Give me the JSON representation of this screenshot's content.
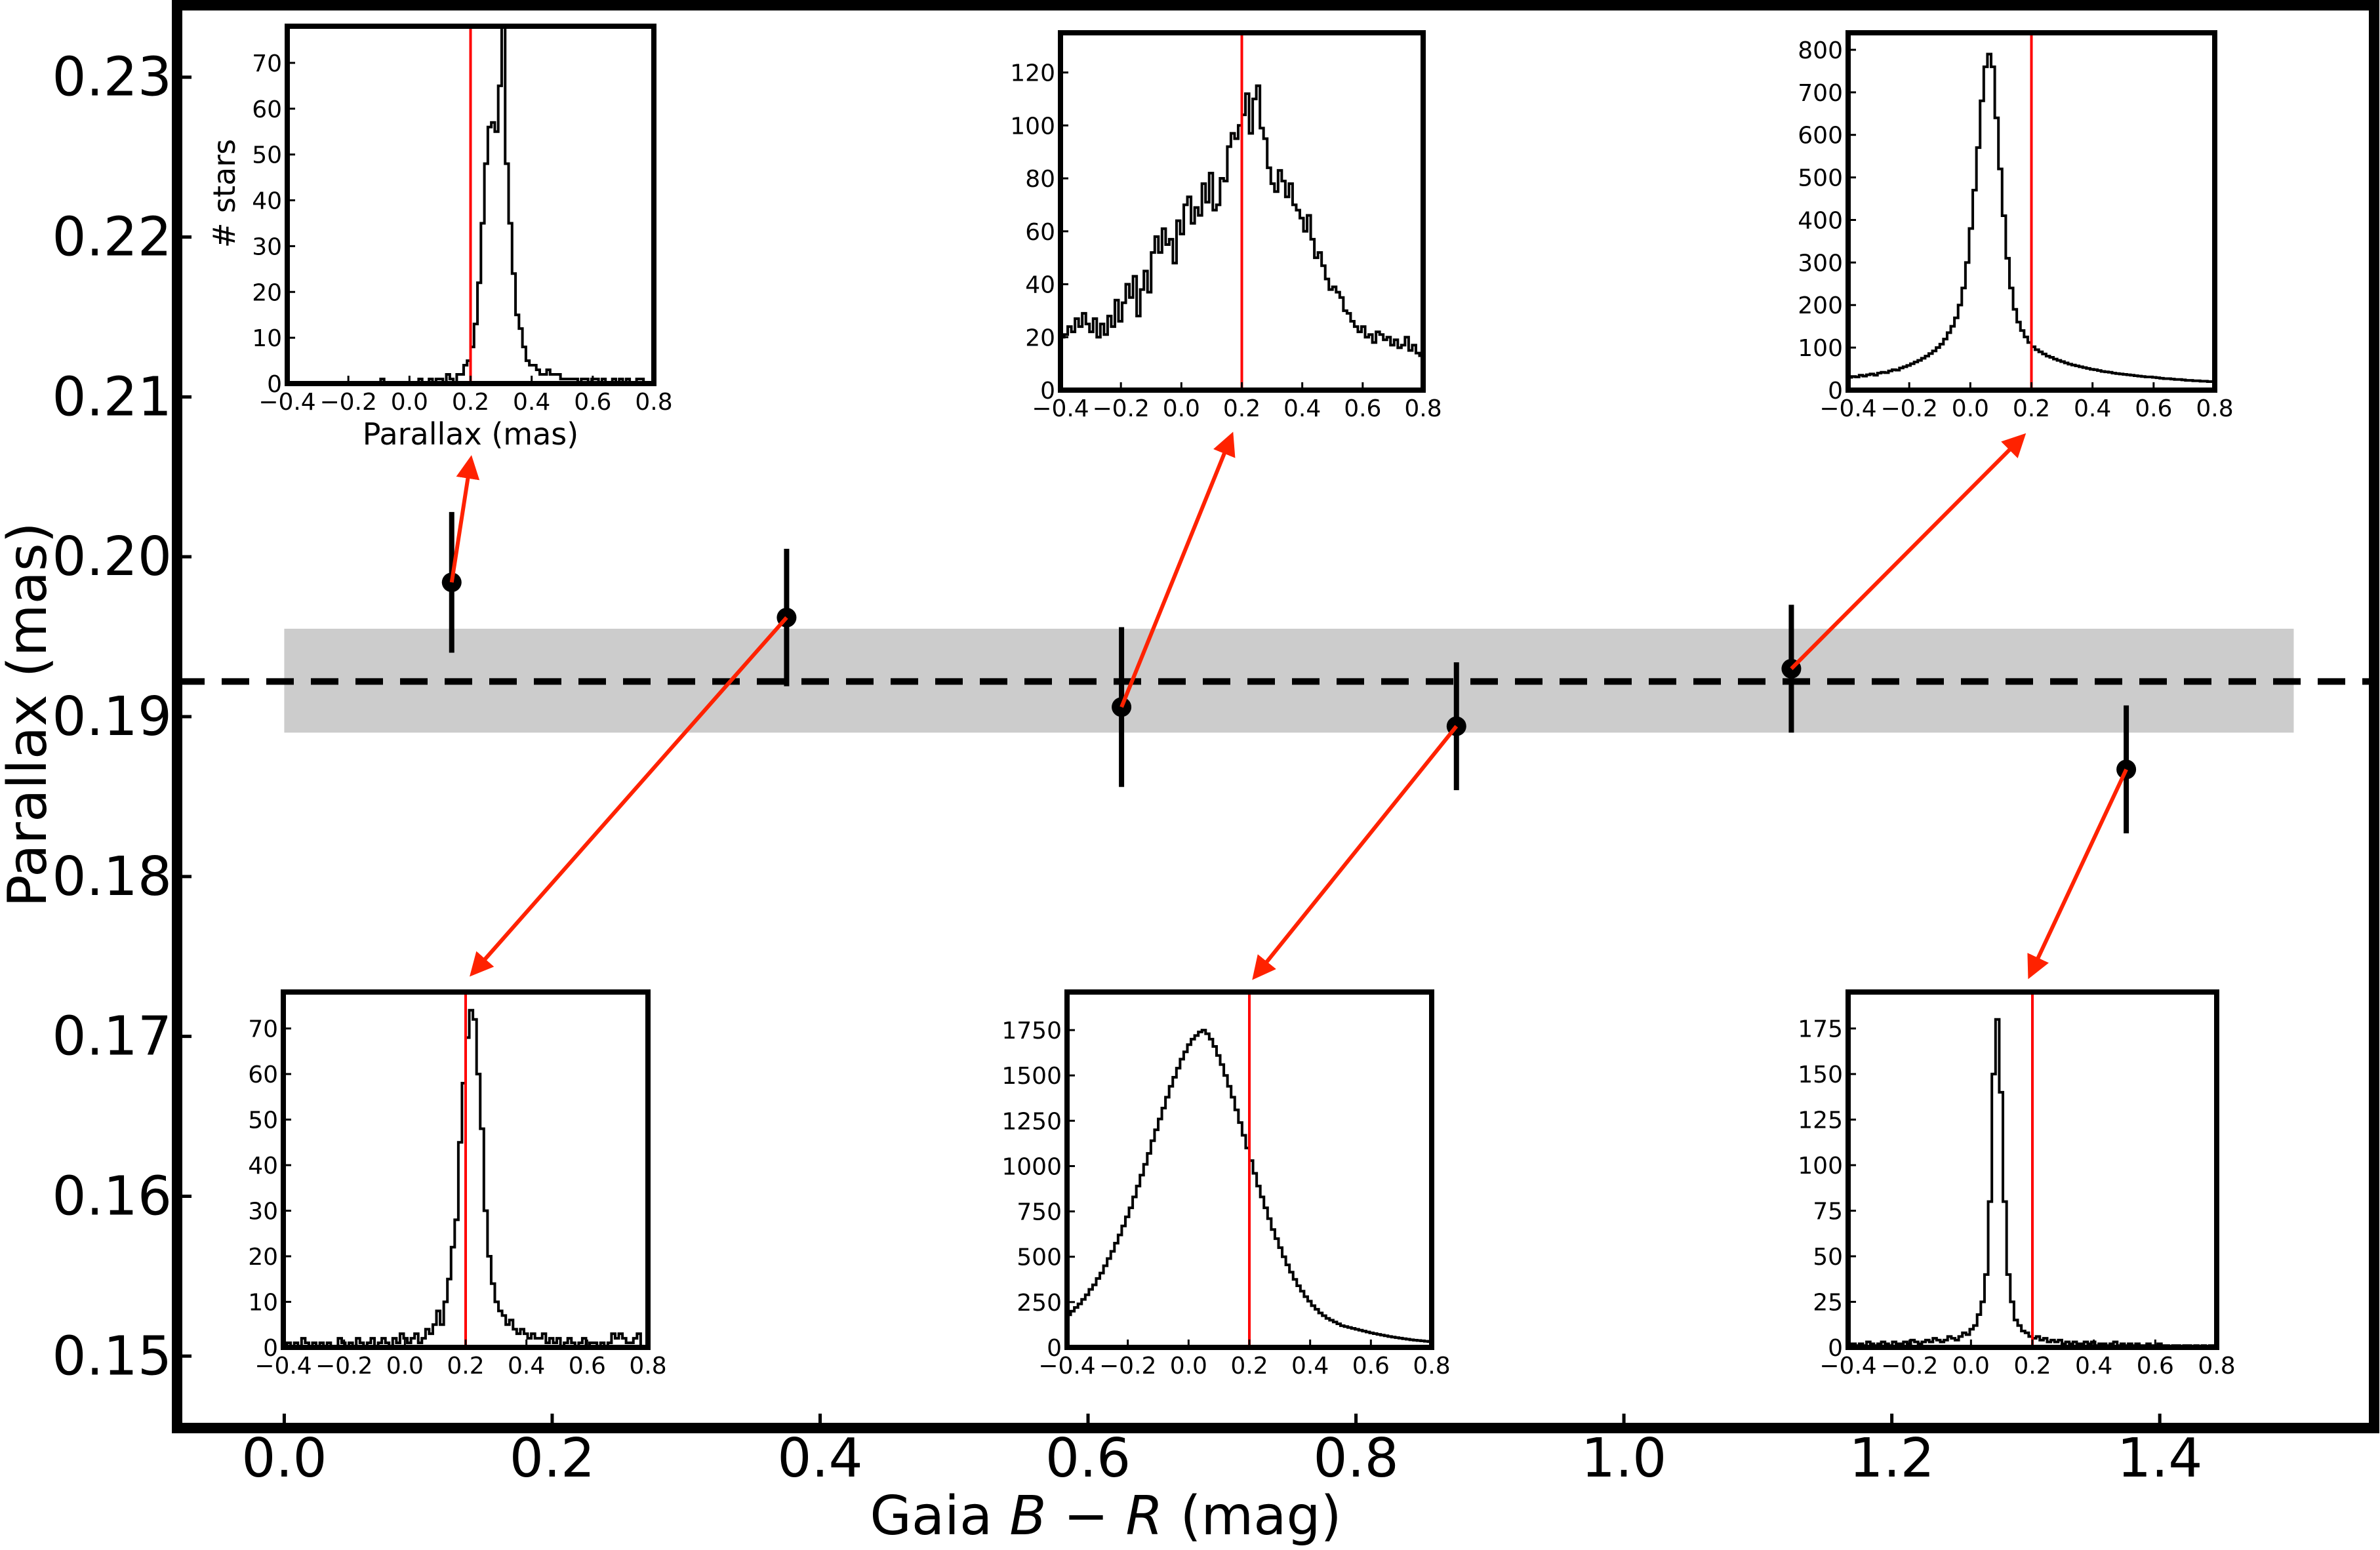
{
  "chart_data": {
    "type": "scatter",
    "xlabel_parts": [
      "Gaia ",
      "B",
      " − ",
      "R",
      " (mag)"
    ],
    "ylabel": "Parallax (mas)",
    "xlim": [
      -0.08,
      1.56
    ],
    "ylim": [
      0.1455,
      0.2345
    ],
    "xticks": [
      0.0,
      0.2,
      0.4,
      0.6,
      0.8,
      1.0,
      1.2,
      1.4
    ],
    "xtick_labels": [
      "0.0",
      "0.2",
      "0.4",
      "0.6",
      "0.8",
      "1.0",
      "1.2",
      "1.4"
    ],
    "yticks": [
      0.15,
      0.16,
      0.17,
      0.18,
      0.19,
      0.2,
      0.21,
      0.22,
      0.23
    ],
    "ytick_labels": [
      "0.15",
      "0.16",
      "0.17",
      "0.18",
      "0.19",
      "0.20",
      "0.21",
      "0.22",
      "0.23"
    ],
    "reference_line": {
      "y": 0.1922,
      "style": "dashed",
      "color": "#000000"
    },
    "shaded_band": {
      "x": [
        0.0,
        1.5
      ],
      "y": [
        0.189,
        0.1955
      ],
      "color": "#cccccc"
    },
    "points": [
      {
        "x": 0.125,
        "y": 0.1984,
        "err": 0.0044
      },
      {
        "x": 0.375,
        "y": 0.1962,
        "err": 0.0043
      },
      {
        "x": 0.625,
        "y": 0.1906,
        "err": 0.005
      },
      {
        "x": 0.875,
        "y": 0.1894,
        "err": 0.004
      },
      {
        "x": 1.125,
        "y": 0.193,
        "err": 0.004
      },
      {
        "x": 1.375,
        "y": 0.1867,
        "err": 0.004
      }
    ],
    "arrow_color": "#ff2200",
    "insets": [
      {
        "name": "inset-bin-1",
        "xlim": [
          -0.4,
          0.8
        ],
        "ylim": [
          0,
          78
        ],
        "xticks": [
          -0.4,
          -0.2,
          0.0,
          0.2,
          0.4,
          0.6,
          0.8
        ],
        "xtick_labels": [
          "−0.4",
          "−0.2",
          "0.0",
          "0.2",
          "0.4",
          "0.6",
          "0.8"
        ],
        "yticks": [
          0,
          10,
          20,
          30,
          40,
          50,
          60,
          70
        ],
        "ytick_labels": [
          "0",
          "10",
          "20",
          "30",
          "40",
          "50",
          "60",
          "70"
        ],
        "xlabel": "Parallax (mas)",
        "ylabel": "# stars",
        "vline": 0.2,
        "counts": [
          0,
          0,
          0,
          0,
          0,
          0,
          0,
          0,
          0,
          0,
          0,
          0,
          0,
          0,
          0,
          0,
          0,
          0,
          0,
          0,
          0,
          0,
          0,
          0,
          0,
          0,
          0,
          1,
          0,
          0,
          0,
          0,
          0,
          0,
          0,
          0,
          0,
          0,
          1,
          0,
          0,
          1,
          0,
          1,
          1,
          0,
          2,
          1,
          0,
          2,
          2,
          4,
          5,
          8,
          13,
          22,
          35,
          48,
          56,
          57,
          55,
          65,
          78,
          48,
          35,
          24,
          15,
          12,
          8,
          5,
          4,
          4,
          3,
          2,
          2,
          3,
          2,
          2,
          2,
          1,
          1,
          1,
          1,
          1,
          0,
          1,
          1,
          0,
          1,
          1,
          0,
          1,
          0,
          0,
          1,
          0,
          1,
          0,
          1,
          0,
          0,
          1,
          1,
          0,
          0,
          0
        ]
      },
      {
        "name": "inset-bin-2",
        "xlim": [
          -0.4,
          0.8
        ],
        "ylim": [
          0,
          135
        ],
        "xticks": [
          -0.4,
          -0.2,
          0.0,
          0.2,
          0.4,
          0.6,
          0.8
        ],
        "xtick_labels": [
          "−0.4",
          "−0.2",
          "0.0",
          "0.2",
          "0.4",
          "0.6",
          "0.8"
        ],
        "yticks": [
          0,
          20,
          40,
          60,
          80,
          100,
          120
        ],
        "ytick_labels": [
          "0",
          "20",
          "40",
          "60",
          "80",
          "100",
          "120"
        ],
        "xlabel": "",
        "ylabel": "",
        "vline": 0.2,
        "counts": [
          20,
          21,
          24,
          22,
          27,
          24,
          29,
          25,
          22,
          27,
          20,
          25,
          21,
          28,
          24,
          34,
          26,
          33,
          40,
          35,
          43,
          28,
          38,
          45,
          37,
          52,
          58,
          52,
          61,
          55,
          57,
          48,
          64,
          59,
          70,
          73,
          63,
          69,
          66,
          78,
          71,
          82,
          68,
          70,
          80,
          79,
          92,
          97,
          95,
          100,
          104,
          112,
          97,
          110,
          115,
          99,
          95,
          84,
          78,
          75,
          83,
          79,
          73,
          78,
          70,
          68,
          65,
          60,
          66,
          57,
          50,
          52,
          47,
          42,
          38,
          39,
          37,
          35,
          30,
          29,
          26,
          24,
          22,
          24,
          20,
          21,
          18,
          22,
          21,
          19,
          20,
          17,
          19,
          16,
          17,
          20,
          15,
          17,
          14,
          13
        ]
      },
      {
        "name": "inset-bin-3",
        "xlim": [
          -0.4,
          0.8
        ],
        "ylim": [
          0,
          840
        ],
        "xticks": [
          -0.4,
          -0.2,
          0.0,
          0.2,
          0.4,
          0.6,
          0.8
        ],
        "xtick_labels": [
          "−0.4",
          "−0.2",
          "0.0",
          "0.2",
          "0.4",
          "0.6",
          "0.8"
        ],
        "yticks": [
          0,
          100,
          200,
          300,
          400,
          500,
          600,
          700,
          800
        ],
        "ytick_labels": [
          "0",
          "100",
          "200",
          "300",
          "400",
          "500",
          "600",
          "700",
          "800"
        ],
        "xlabel": "",
        "ylabel": "",
        "vline": 0.2,
        "counts": [
          30,
          32,
          31,
          35,
          33,
          36,
          38,
          35,
          40,
          42,
          41,
          45,
          48,
          47,
          52,
          55,
          58,
          62,
          66,
          70,
          75,
          80,
          86,
          92,
          100,
          108,
          120,
          135,
          150,
          170,
          200,
          240,
          300,
          380,
          470,
          570,
          680,
          760,
          790,
          760,
          640,
          520,
          410,
          310,
          240,
          190,
          160,
          140,
          125,
          112,
          102,
          95,
          90,
          85,
          80,
          77,
          73,
          70,
          67,
          64,
          61,
          59,
          57,
          55,
          53,
          51,
          49,
          48,
          46,
          44,
          43,
          42,
          40,
          39,
          38,
          37,
          36,
          35,
          34,
          33,
          32,
          31,
          31,
          30,
          29,
          28,
          27,
          27,
          26,
          25,
          25,
          24,
          23,
          23,
          22,
          22,
          21,
          21,
          20,
          20
        ]
      },
      {
        "name": "inset-bin-4",
        "xlim": [
          -0.4,
          0.8
        ],
        "ylim": [
          0,
          78
        ],
        "xticks": [
          -0.4,
          -0.2,
          0.0,
          0.2,
          0.4,
          0.6,
          0.8
        ],
        "xtick_labels": [
          "−0.4",
          "−0.2",
          "0.0",
          "0.2",
          "0.4",
          "0.6",
          "0.8"
        ],
        "yticks": [
          0,
          10,
          20,
          30,
          40,
          50,
          60,
          70
        ],
        "ytick_labels": [
          "0",
          "10",
          "20",
          "30",
          "40",
          "50",
          "60",
          "70"
        ],
        "xlabel": "",
        "ylabel": "",
        "vline": 0.2,
        "counts": [
          0,
          1,
          0,
          1,
          0,
          2,
          1,
          0,
          1,
          0,
          1,
          0,
          1,
          0,
          0,
          2,
          1,
          0,
          1,
          0,
          2,
          1,
          0,
          1,
          2,
          0,
          1,
          2,
          1,
          0,
          2,
          1,
          3,
          2,
          1,
          2,
          3,
          1,
          2,
          4,
          3,
          5,
          8,
          5,
          10,
          15,
          22,
          28,
          45,
          58,
          68,
          74,
          72,
          60,
          48,
          30,
          20,
          14,
          10,
          8,
          7,
          5,
          6,
          4,
          3,
          4,
          3,
          2,
          3,
          2,
          2,
          3,
          1,
          2,
          1,
          2,
          0,
          1,
          2,
          1,
          0,
          1,
          2,
          0,
          1,
          1,
          0,
          1,
          0,
          1,
          3,
          2,
          3,
          2,
          1,
          1,
          2,
          3,
          0,
          0
        ]
      },
      {
        "name": "inset-bin-5",
        "xlim": [
          -0.4,
          0.8
        ],
        "ylim": [
          0,
          1960
        ],
        "xticks": [
          -0.4,
          -0.2,
          0.0,
          0.2,
          0.4,
          0.6,
          0.8
        ],
        "xtick_labels": [
          "−0.4",
          "−0.2",
          "0.0",
          "0.2",
          "0.4",
          "0.6",
          "0.8"
        ],
        "yticks": [
          0,
          250,
          500,
          750,
          1000,
          1250,
          1500,
          1750
        ],
        "ytick_labels": [
          "0",
          "250",
          "500",
          "750",
          "1000",
          "1250",
          "1500",
          "1750"
        ],
        "xlabel": "",
        "ylabel": "",
        "vline": 0.2,
        "counts": [
          180,
          200,
          220,
          240,
          265,
          290,
          320,
          345,
          380,
          410,
          450,
          490,
          530,
          575,
          620,
          670,
          720,
          770,
          830,
          890,
          950,
          1010,
          1070,
          1140,
          1200,
          1260,
          1320,
          1380,
          1440,
          1490,
          1540,
          1590,
          1630,
          1670,
          1700,
          1720,
          1740,
          1750,
          1730,
          1700,
          1660,
          1610,
          1560,
          1500,
          1440,
          1380,
          1310,
          1240,
          1170,
          1100,
          1030,
          960,
          890,
          830,
          770,
          710,
          650,
          600,
          550,
          500,
          455,
          415,
          375,
          340,
          310,
          280,
          255,
          230,
          210,
          190,
          175,
          160,
          150,
          140,
          130,
          120,
          115,
          110,
          105,
          100,
          95,
          90,
          85,
          80,
          76,
          72,
          68,
          64,
          60,
          57,
          54,
          51,
          48,
          45,
          42,
          40,
          38,
          36,
          34,
          32
        ]
      },
      {
        "name": "inset-bin-6",
        "xlim": [
          -0.4,
          0.8
        ],
        "ylim": [
          0,
          195
        ],
        "xticks": [
          -0.4,
          -0.2,
          0.0,
          0.2,
          0.4,
          0.6,
          0.8
        ],
        "xtick_labels": [
          "−0.4",
          "−0.2",
          "0.0",
          "0.2",
          "0.4",
          "0.6",
          "0.8"
        ],
        "yticks": [
          0,
          25,
          50,
          75,
          100,
          125,
          150,
          175
        ],
        "ytick_labels": [
          "0",
          "25",
          "50",
          "75",
          "100",
          "125",
          "150",
          "175"
        ],
        "xlabel": "",
        "ylabel": "",
        "vline": 0.2,
        "counts": [
          1,
          2,
          1,
          2,
          1,
          3,
          2,
          1,
          2,
          3,
          2,
          1,
          3,
          2,
          2,
          3,
          2,
          4,
          3,
          2,
          3,
          4,
          3,
          5,
          4,
          3,
          4,
          6,
          5,
          4,
          6,
          8,
          7,
          10,
          12,
          18,
          25,
          40,
          80,
          150,
          180,
          140,
          80,
          40,
          25,
          15,
          12,
          9,
          8,
          6,
          5,
          6,
          4,
          5,
          3,
          4,
          3,
          4,
          2,
          3,
          2,
          3,
          2,
          2,
          3,
          2,
          3,
          1,
          2,
          2,
          1,
          2,
          3,
          1,
          2,
          1,
          2,
          1,
          2,
          1,
          1,
          2,
          1,
          1,
          2,
          1,
          1,
          0,
          1,
          1,
          0,
          1,
          1,
          0,
          1,
          0,
          1,
          0,
          1,
          0
        ]
      }
    ]
  }
}
